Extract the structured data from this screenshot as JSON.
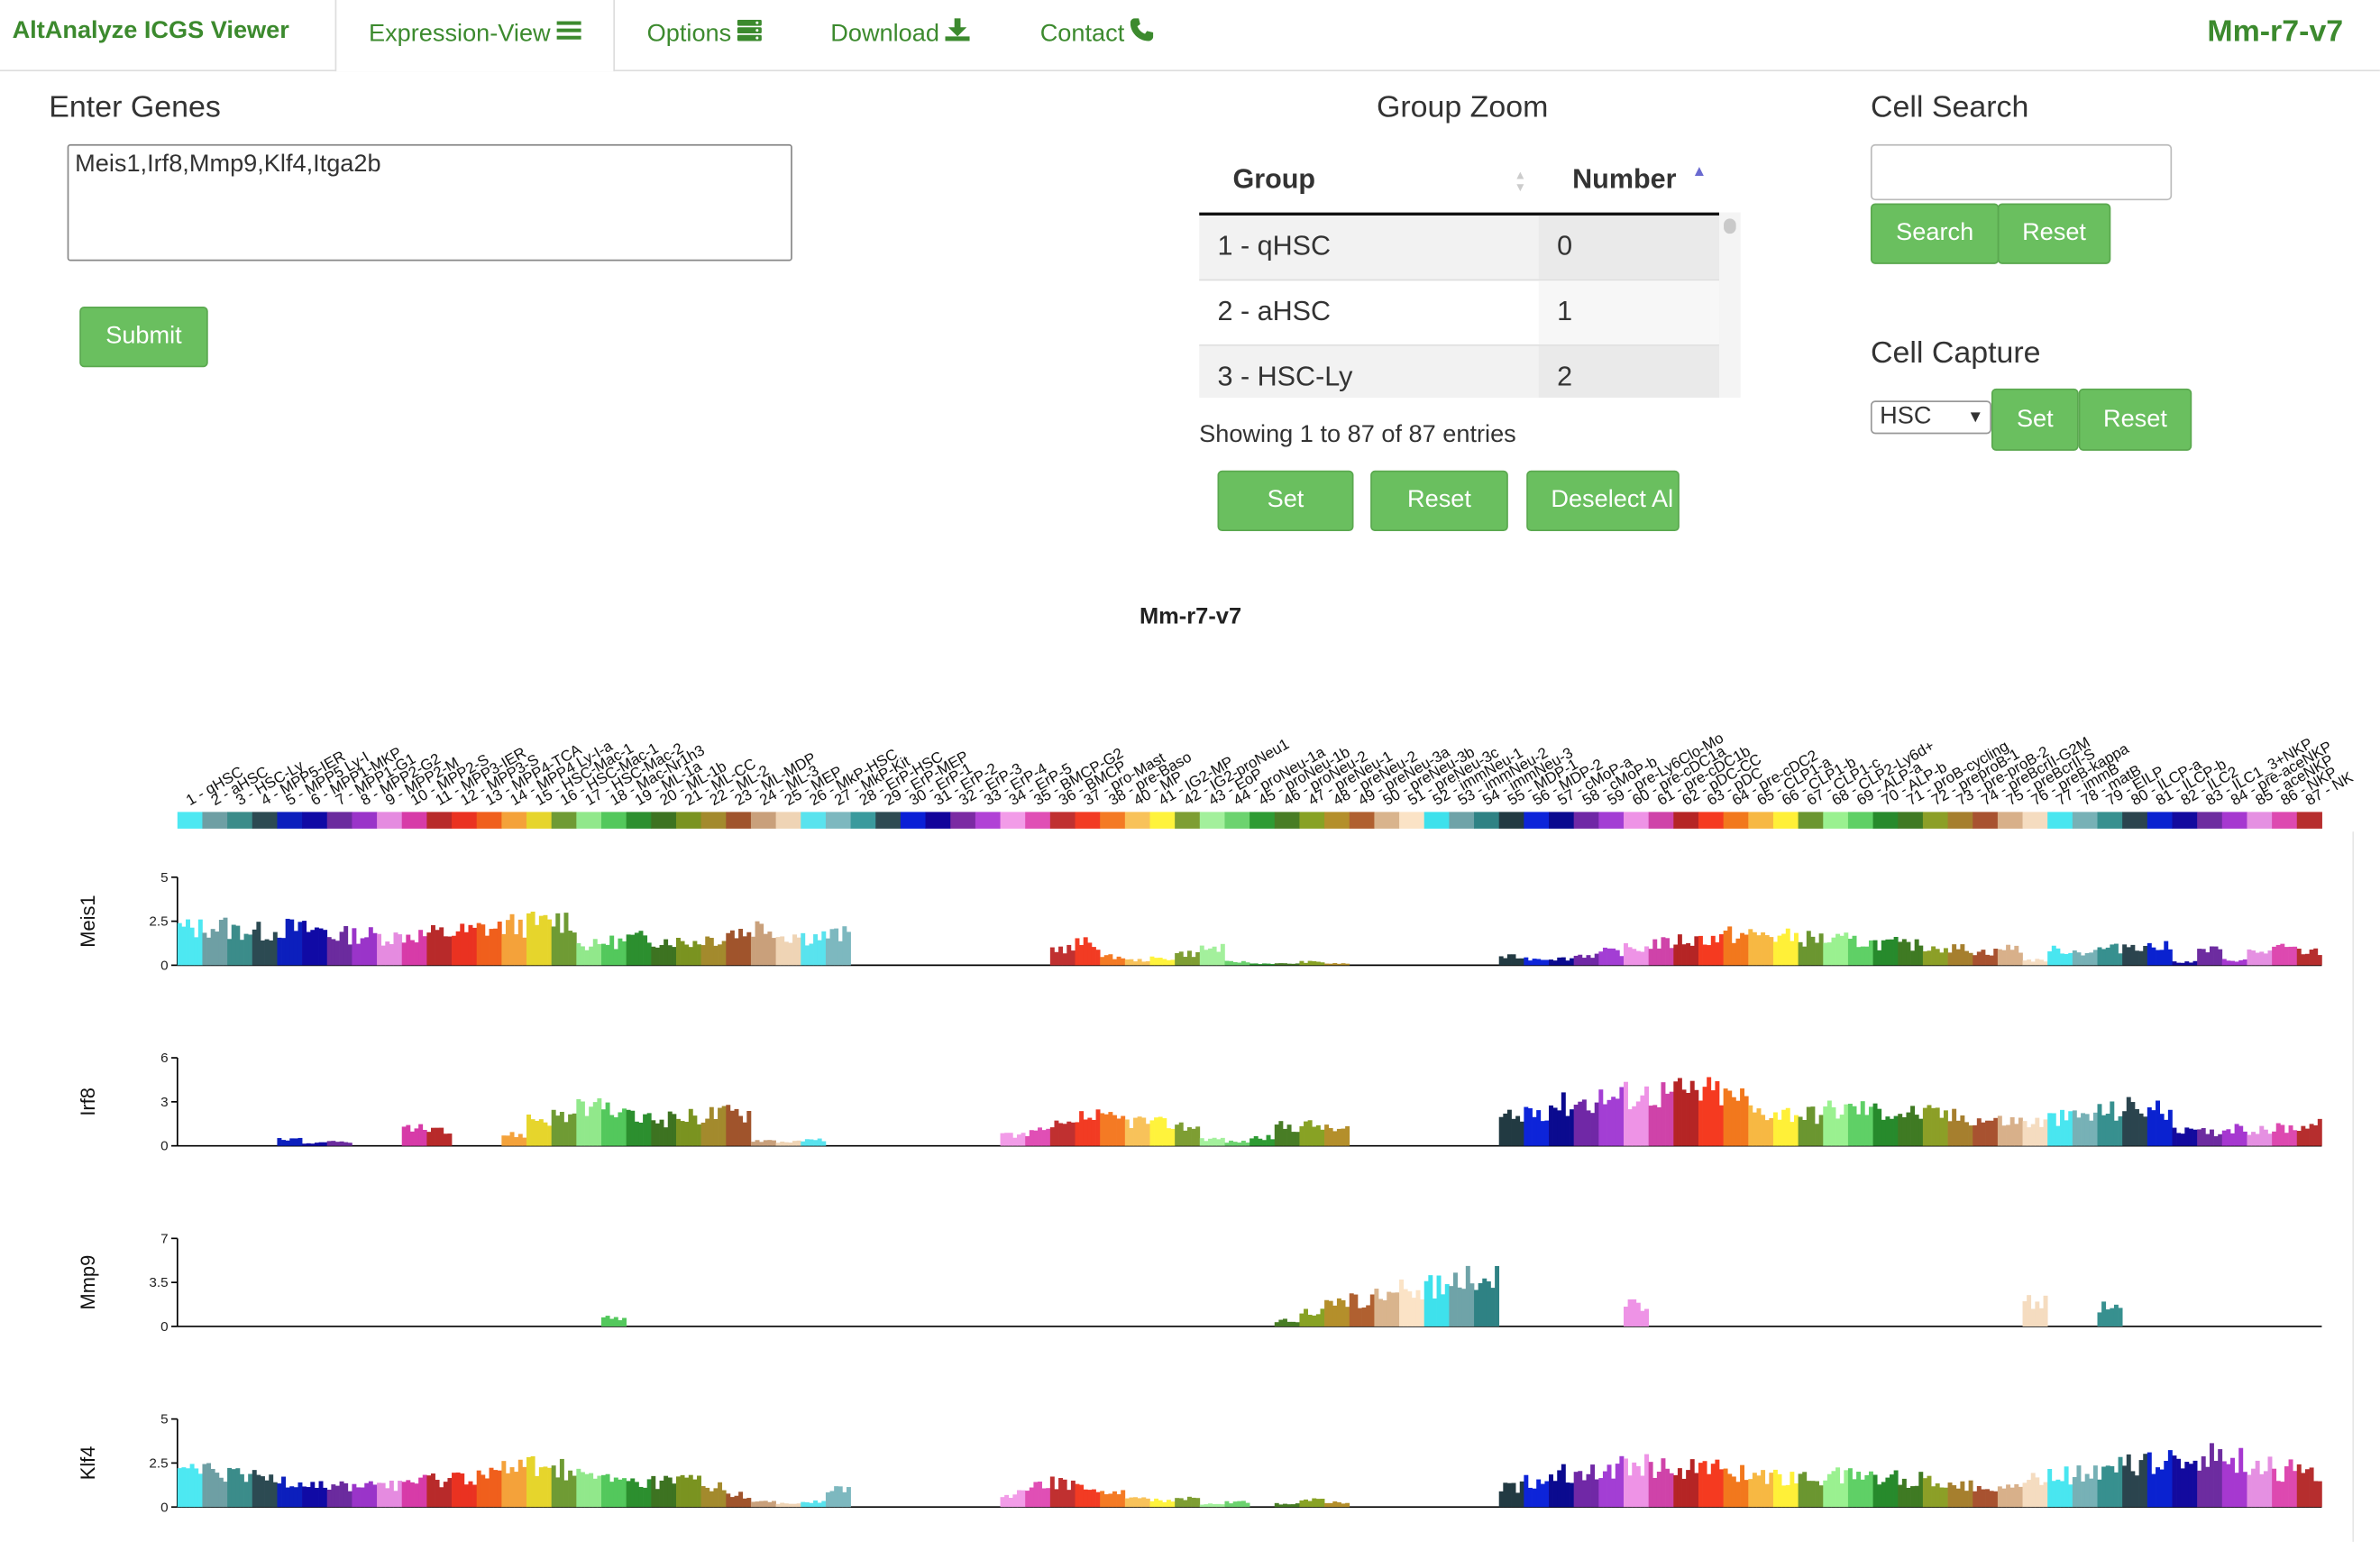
{
  "nav": {
    "brand": "AltAnalyze ICGS Viewer",
    "tabs": [
      {
        "label": "Expression-View",
        "icon": "list-icon"
      },
      {
        "label": "Options",
        "icon": "server-icon"
      },
      {
        "label": "Download",
        "icon": "download-icon"
      },
      {
        "label": "Contact",
        "icon": "phone-icon"
      }
    ],
    "dataset": "Mm-r7-v7"
  },
  "genes": {
    "heading": "Enter Genes",
    "value": "Meis1,Irf8,Mmp9,Klf4,Itga2b",
    "submit": "Submit"
  },
  "group_zoom": {
    "heading": "Group Zoom",
    "col_group": "Group",
    "col_number": "Number",
    "rows": [
      {
        "group": "1 - qHSC",
        "number": "0"
      },
      {
        "group": "2 - aHSC",
        "number": "1"
      },
      {
        "group": "3 - HSC-Ly",
        "number": "2"
      }
    ],
    "info": "Showing 1 to 87 of 87 entries",
    "set": "Set",
    "reset": "Reset",
    "deselect": "Deselect Al"
  },
  "cell_search": {
    "heading": "Cell Search",
    "value": "",
    "search": "Search",
    "reset": "Reset"
  },
  "cell_capture": {
    "heading": "Cell Capture",
    "selected": "HSC",
    "set": "Set",
    "reset": "Reset"
  },
  "colors": {
    "accent": "#6abf5f",
    "brand": "#3c8a2e"
  },
  "chart_data": {
    "type": "bar",
    "title": "Mm-r7-v7",
    "groups": [
      "1 - qHSC",
      "2 - aHSC",
      "3 - HSC-Ly",
      "4 - MPP5-IER",
      "5 - MPP5 Ly-I",
      "6 - MPP1-MKP",
      "7 - MPP1-G1",
      "8 - MPP2-G2",
      "9 - MPP2-M",
      "10 - MPP2-S",
      "11 - MPP3-IER",
      "12 - MPP3-S",
      "13 - MPP4-TCA",
      "14 - MPP4 Ly-I-a",
      "15 - HSC-Mac-1",
      "16 - HSC-Mac-1",
      "17 - HSC-Mac-2",
      "18 - Mac-Nr1h3",
      "19 - ML-1a",
      "20 - ML-1b",
      "21 - ML-CC",
      "22 - ML-2",
      "23 - ML-MDP",
      "24 - ML-3",
      "25 - MEP",
      "26 - MkP-HSC",
      "27 - MkP-Kit",
      "28 - ErP-HSC",
      "29 - ErP-MEP",
      "30 - ErP-1",
      "31 - ErP-2",
      "32 - ErP-3",
      "33 - ErP-4",
      "34 - ErP-5",
      "35 - BMCP-G2",
      "36 - BMCP",
      "37 - pro-Mast",
      "38 - pre-Baso",
      "40 - MP",
      "41 - IG2-MP",
      "42 - IG2-proNeu1",
      "43 - EoP",
      "44 - proNeu-1a",
      "45 - proNeu-1b",
      "46 - proNeu-2",
      "47 - preNeu-1",
      "48 - preNeu-2",
      "49 - preNeu-3a",
      "50 - preNeu-3b",
      "51 - preNeu-3c",
      "52 - immNeu-1",
      "53 - immNeu-2",
      "54 - immNeu-3",
      "55 - MDP-1",
      "56 - MDP-2",
      "57 - cMoP-a",
      "58 - cMoP-b",
      "59 - pre-Ly6Clo-Mo",
      "60 - pre-cDC1a",
      "61 - pre-cDC1b",
      "62 - pDC-CC",
      "63 - pDC",
      "64 - pre-cDC2",
      "65 - CLP1-a",
      "66 - CLP1-b",
      "67 - CLP1-c",
      "68 - CLP2-Ly6d+",
      "69 - ALP-a",
      "70 - ALP-b",
      "71 - proB-cycling",
      "72 - preproB-1",
      "73 - pre-proB-2",
      "74 - preBcrII-G2M",
      "75 - preBcrII-S",
      "76 - preB-kappa",
      "77 - immB",
      "78 - matB",
      "79 - EILP",
      "80 - ILCP-a",
      "81 - ILCP-b",
      "82 - ILC2",
      "83 - ILC1_3+NKP",
      "84 - pre-aceNKP",
      "85 - aceNKP",
      "86 - NKP",
      "87 - NK"
    ],
    "group_colors": [
      "#4de8f2",
      "#6e9fa4",
      "#3b8c8a",
      "#2c4a52",
      "#0c1fbd",
      "#100aa5",
      "#6b2b9e",
      "#9a34c9",
      "#e58be0",
      "#d73ba8",
      "#b82a2a",
      "#ea3221",
      "#f05f1c",
      "#f4a23a",
      "#e6d52c",
      "#6f9b34",
      "#91e88b",
      "#53c85c",
      "#2c8f2f",
      "#3d7321",
      "#7a9320",
      "#a38a2d",
      "#a0542c",
      "#c9a07b",
      "#efd4b5",
      "#59e3ee",
      "#7db8bf",
      "#3a9a9d",
      "#2e4a52",
      "#0a1fd6",
      "#12039a",
      "#7b2aa3",
      "#b142d6",
      "#f29ce8",
      "#e04fb5",
      "#c03030",
      "#f23b23",
      "#f47a24",
      "#f8c25a",
      "#fff33c",
      "#7e9e33",
      "#a3f09c",
      "#6cd36f",
      "#2e9b33",
      "#487d25",
      "#88a224",
      "#b48f2b",
      "#b06030",
      "#d9b48d",
      "#fbe3c6",
      "#3ee1ec",
      "#6fa3a8",
      "#2f8284",
      "#223a42",
      "#0d24d9",
      "#0b0a8f",
      "#7028a6",
      "#a33ed4",
      "#ee93e6",
      "#cf43a9",
      "#b52525",
      "#f53a20",
      "#f2781d",
      "#f7b843",
      "#fff038",
      "#6b9630",
      "#9af190",
      "#5fd066",
      "#278a2c",
      "#3f7a23",
      "#8c9f27",
      "#a67f2e",
      "#a85230",
      "#d8b08a",
      "#f5dcc0",
      "#49e6f0",
      "#77b1b6",
      "#37908f",
      "#2b444e",
      "#0a22d0",
      "#130a9e",
      "#6d2ca0",
      "#a638d0",
      "#e590e2",
      "#dd49b0",
      "#b62e2e",
      "#ed3a22"
    ],
    "genes": [
      "Meis1",
      "Irf8",
      "Mmp9",
      "Klf4"
    ],
    "ymax": [
      5,
      6,
      7,
      5
    ],
    "yticks": [
      [
        "0",
        "2.5",
        "5"
      ],
      [
        "0",
        "3",
        "6"
      ],
      [
        "0",
        "3.5",
        "7"
      ],
      [
        "0",
        "2.5",
        "5"
      ]
    ],
    "profiles": [
      [
        2.2,
        2.3,
        2.1,
        2.0,
        2.2,
        2.1,
        1.8,
        1.8,
        1.7,
        1.8,
        1.9,
        2.0,
        2.2,
        2.4,
        2.5,
        2.7,
        1.2,
        1.4,
        1.6,
        1.5,
        1.4,
        1.6,
        2.0,
        2.3,
        1.8,
        1.7,
        1.8,
        0,
        0,
        0,
        0,
        0,
        0,
        0,
        0,
        1.0,
        1.3,
        0.5,
        0.3,
        0.4,
        0.7,
        1.0,
        0.2,
        0.1,
        0.1,
        0.2,
        0.1,
        0,
        0,
        0,
        0,
        0,
        0,
        0.5,
        0.4,
        0.4,
        0.6,
        0.8,
        1.0,
        1.3,
        1.5,
        1.6,
        1.8,
        1.8,
        1.7,
        1.6,
        1.5,
        1.4,
        1.3,
        1.2,
        1.1,
        1.0,
        0.8,
        1.0,
        0.3,
        0.9,
        0.8,
        1.0,
        1.2,
        1.1,
        0.2,
        0.9,
        0.3,
        0.8,
        1.0,
        0.8,
        1.0
      ],
      [
        0,
        0,
        0,
        0,
        0.5,
        0.2,
        0.3,
        0,
        0,
        1.2,
        1.0,
        0,
        0,
        0.8,
        2.0,
        2.2,
        2.6,
        2.5,
        2.0,
        1.9,
        2.1,
        2.3,
        2.4,
        0.4,
        0.3,
        0.4,
        0,
        0,
        0,
        0,
        0,
        0,
        0,
        0.8,
        1.0,
        1.4,
        2.0,
        1.9,
        1.8,
        1.6,
        1.4,
        0.5,
        0.3,
        0.6,
        1.4,
        1.5,
        1.2,
        0,
        0,
        0,
        0,
        0,
        0,
        2.0,
        2.6,
        3.0,
        3.2,
        3.5,
        3.7,
        3.8,
        3.9,
        3.9,
        3.5,
        2.5,
        2.4,
        2.3,
        2.6,
        2.7,
        2.5,
        2.4,
        2.3,
        2.1,
        1.9,
        1.8,
        1.7,
        2.0,
        2.2,
        2.5,
        2.8,
        2.6,
        1.0,
        1.0,
        1.2,
        1.1,
        1.3,
        1.5,
        1.4
      ],
      [
        0,
        0,
        0,
        0,
        0,
        0,
        0,
        0,
        0,
        0,
        0,
        0,
        0,
        0,
        0,
        0,
        0,
        0.7,
        0,
        0,
        0,
        0,
        0,
        0,
        0,
        0,
        0,
        0,
        0,
        0,
        0,
        0,
        0,
        0,
        0,
        0,
        0,
        0,
        0,
        0,
        0,
        0,
        0,
        0,
        0.5,
        1.2,
        1.8,
        2.2,
        2.6,
        3.0,
        3.4,
        4.0,
        4.3,
        0,
        0,
        0,
        0,
        0,
        1.8,
        0,
        0,
        0,
        0,
        0,
        0,
        0,
        0,
        0,
        0,
        0,
        0,
        0,
        0,
        0,
        2.0,
        0,
        0,
        1.7,
        0,
        0,
        0,
        0,
        0,
        0,
        0,
        0,
        0
      ],
      [
        2.2,
        2.0,
        1.8,
        1.7,
        1.6,
        1.4,
        1.2,
        1.3,
        1.4,
        1.5,
        1.6,
        1.8,
        2.0,
        2.2,
        2.5,
        2.2,
        1.8,
        1.6,
        1.4,
        1.5,
        1.6,
        1.2,
        0.7,
        0.3,
        0.2,
        0.3,
        1.0,
        0,
        0,
        0,
        0,
        0,
        0,
        0.8,
        1.2,
        1.4,
        1.2,
        0.8,
        0.5,
        0.4,
        0.6,
        0.2,
        0.3,
        0,
        0.2,
        0.4,
        0.3,
        0,
        0,
        0,
        0,
        0,
        0,
        1.2,
        1.6,
        2.0,
        2.2,
        2.4,
        2.6,
        2.5,
        2.3,
        2.2,
        2.0,
        1.9,
        1.8,
        1.7,
        1.8,
        1.9,
        1.7,
        1.6,
        1.5,
        1.4,
        1.3,
        1.2,
        1.6,
        1.9,
        2.1,
        2.3,
        2.5,
        2.6,
        2.8,
        3.0,
        2.8,
        2.4,
        2.2,
        2.0,
        1.8
      ]
    ]
  }
}
